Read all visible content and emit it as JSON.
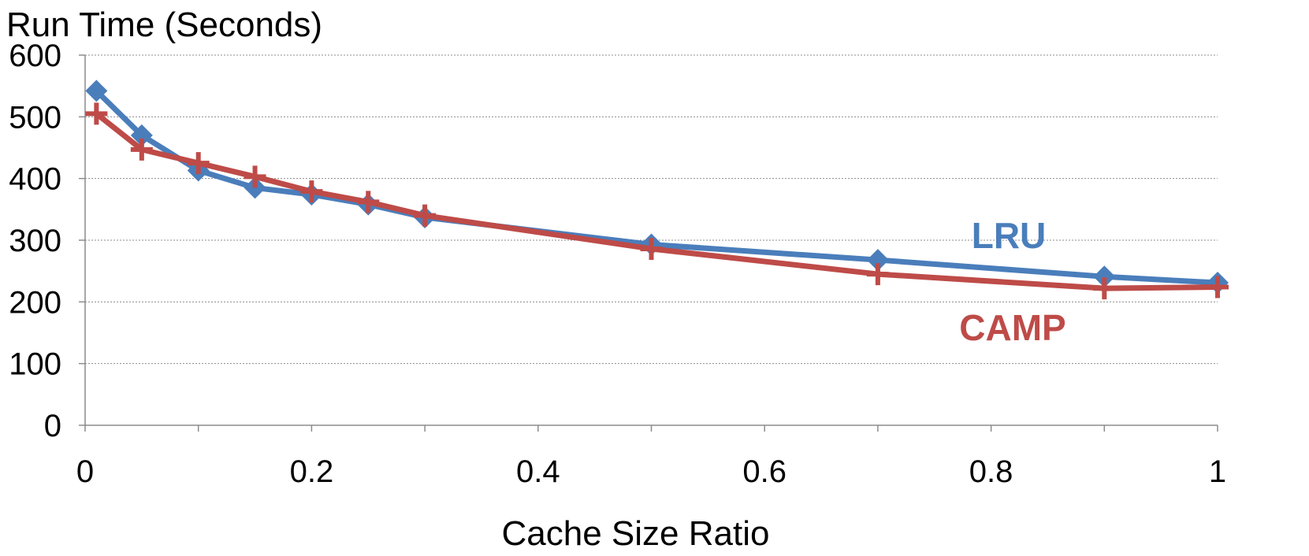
{
  "chart_data": {
    "type": "line",
    "title": "",
    "ylabel": "Run Time (Seconds)",
    "xlabel": "Cache Size Ratio",
    "xlim": [
      0,
      1
    ],
    "ylim": [
      0,
      600
    ],
    "x_ticks": [
      "0",
      "0.2",
      "0.4",
      "0.6",
      "0.8",
      "1"
    ],
    "x_tick_values": [
      0,
      0.2,
      0.4,
      0.6,
      0.8,
      1
    ],
    "y_ticks": [
      "0",
      "100",
      "200",
      "300",
      "400",
      "500",
      "600"
    ],
    "y_tick_values": [
      0,
      100,
      200,
      300,
      400,
      500,
      600
    ],
    "grid": "horizontal dotted",
    "legend": "inline labels near line ends",
    "series": [
      {
        "name": "LRU",
        "color": "#4a7ebb",
        "marker": "diamond",
        "label_placement": "above",
        "x": [
          0.01,
          0.05,
          0.1,
          0.15,
          0.2,
          0.25,
          0.3,
          0.5,
          0.7,
          0.9,
          1.0
        ],
        "y": [
          542,
          470,
          413,
          385,
          374,
          358,
          337,
          293,
          268,
          241,
          231
        ]
      },
      {
        "name": "CAMP",
        "color": "#be4b48",
        "marker": "plus",
        "label_placement": "below",
        "x": [
          0.01,
          0.05,
          0.1,
          0.15,
          0.2,
          0.25,
          0.3,
          0.5,
          0.7,
          0.9,
          1.0
        ],
        "y": [
          505,
          447,
          425,
          403,
          379,
          362,
          340,
          286,
          245,
          222,
          224
        ]
      }
    ]
  }
}
